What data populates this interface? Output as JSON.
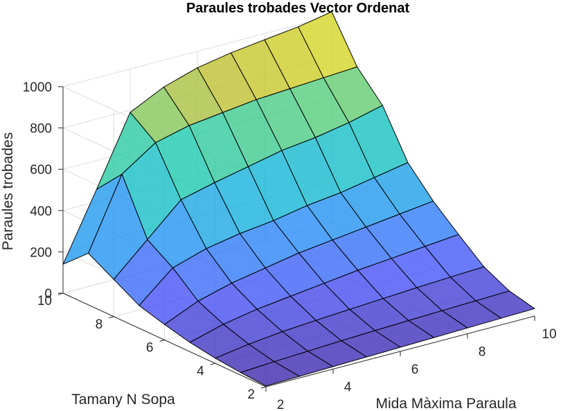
{
  "chart_data": {
    "type": "surface",
    "title": "Paraules trobades Vector Ordenat",
    "xlabel": "Mida Màxima Paraula",
    "ylabel": "Tamany N Sopa",
    "zlabel": "Paraules trobades",
    "x": [
      2,
      3,
      4,
      5,
      6,
      7,
      8,
      9,
      10
    ],
    "y": [
      2,
      3,
      4,
      5,
      6,
      7,
      8,
      9,
      10
    ],
    "xlim": [
      2,
      10
    ],
    "ylim": [
      2,
      10
    ],
    "zlim": [
      0,
      1000
    ],
    "x_ticks": [
      "2",
      "4",
      "6",
      "8",
      "10"
    ],
    "y_ticks": [
      "2",
      "4",
      "6",
      "8",
      "10"
    ],
    "z_ticks": [
      "0",
      "200",
      "400",
      "600",
      "800",
      "1000"
    ],
    "z_tick_values": [
      0,
      200,
      400,
      600,
      800,
      1000
    ],
    "x_tick_values": [
      2,
      4,
      6,
      8,
      10
    ],
    "y_tick_values": [
      2,
      4,
      6,
      8,
      10
    ],
    "grid": true,
    "face_alpha": 0.8,
    "colormap": "parula",
    "z": [
      [
        4,
        8,
        12,
        16,
        20,
        24,
        28,
        32,
        36
      ],
      [
        12,
        22,
        30,
        38,
        44,
        50,
        55,
        60,
        65
      ],
      [
        25,
        50,
        68,
        80,
        90,
        100,
        110,
        118,
        125
      ],
      [
        45,
        90,
        120,
        140,
        160,
        180,
        195,
        210,
        225
      ],
      [
        75,
        145,
        190,
        220,
        250,
        270,
        290,
        310,
        330
      ],
      [
        110,
        250,
        300,
        330,
        350,
        380,
        400,
        430,
        460
      ],
      [
        180,
        330,
        480,
        520,
        555,
        590,
        610,
        640,
        680
      ],
      [
        250,
        590,
        700,
        740,
        760,
        780,
        790,
        800,
        810
      ],
      [
        140,
        460,
        790,
        870,
        920,
        950,
        970,
        990,
        1020
      ]
    ]
  }
}
